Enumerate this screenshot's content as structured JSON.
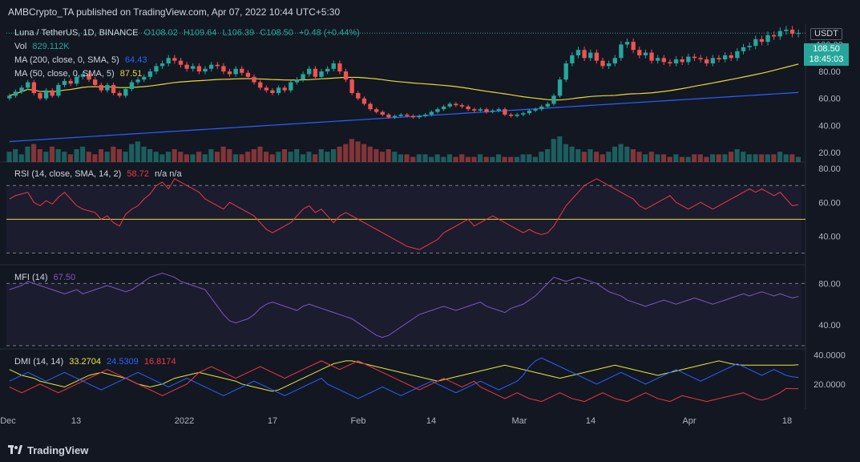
{
  "header": {
    "text": "AMBCrypto_TA published on TradingView.com, Apr 07, 2022 10:44 UTC+5:30"
  },
  "legend": {
    "symbol": "Luna / TetherUS, 1D, BINANCE",
    "open": "O108.02",
    "high": "H109.64",
    "low": "L106.39",
    "close": "C108.50",
    "change": "+0.48 (+0.44%)",
    "vol_label": "Vol",
    "vol_value": "829.112K",
    "ma200_label": "MA (200, close, 0, SMA, 5)",
    "ma200_value": "64.43",
    "ma50_label": "MA (50, close, 0, SMA, 5)",
    "ma50_value": "87.51",
    "rsi_label": "RSI (14, close, SMA, 14, 2)",
    "rsi_value": "58.72",
    "rsi_extra": "n/a n/a",
    "mfi_label": "MFI (14)",
    "mfi_value": "67.50",
    "dmi_label": "DMI (14, 14)",
    "dmi_adx": "33.2704",
    "dmi_plus": "24.5309",
    "dmi_minus": "16.8174"
  },
  "price_axis": {
    "currency": "USDT",
    "last_price": "108.50",
    "countdown": "18:45:03"
  },
  "footer": {
    "brand": "TradingView"
  },
  "colors": {
    "background": "#131722",
    "up": "#26a69a",
    "down": "#ef5350",
    "ma50": "#e6d93a",
    "ma200": "#2962ff",
    "rsi": "#f23645",
    "mfi": "#7e57c2",
    "adx": "#e6e63a",
    "di_plus": "#2962ff",
    "di_minus": "#f23645"
  },
  "chart_data": [
    {
      "type": "candlestick",
      "title": "Luna / TetherUS, 1D, BINANCE",
      "x_ticks": [
        "Dec",
        "13",
        "2022",
        "17",
        "Feb",
        "14",
        "Mar",
        "14",
        "Apr",
        "18"
      ],
      "y_ticks": [
        20.0,
        40.0,
        60.0,
        80.0,
        100.0
      ],
      "ylim": [
        14,
        114
      ],
      "closes": [
        62,
        65,
        68,
        72,
        64,
        60,
        66,
        62,
        70,
        73,
        71,
        76,
        78,
        74,
        70,
        66,
        70,
        64,
        62,
        67,
        72,
        74,
        76,
        80,
        84,
        86,
        90,
        88,
        85,
        82,
        84,
        80,
        82,
        85,
        84,
        80,
        78,
        82,
        79,
        76,
        72,
        68,
        66,
        64,
        68,
        66,
        72,
        74,
        78,
        82,
        76,
        80,
        82,
        86,
        80,
        74,
        64,
        60,
        56,
        52,
        50,
        48,
        46,
        47,
        48,
        47,
        46,
        47,
        48,
        50,
        52,
        54,
        56,
        55,
        54,
        52,
        51,
        52,
        50,
        51,
        52,
        48,
        47,
        48,
        49,
        51,
        52,
        54,
        56,
        62,
        74,
        86,
        92,
        96,
        90,
        94,
        88,
        84,
        86,
        90,
        100,
        102,
        96,
        92,
        94,
        88,
        90,
        87,
        86,
        89,
        87,
        91,
        90,
        89,
        86,
        90,
        89,
        92,
        90,
        95,
        98,
        99,
        104,
        102,
        107,
        106,
        110,
        111,
        108,
        108.5
      ],
      "volume_relative": [
        0.4,
        0.5,
        0.3,
        0.6,
        0.7,
        0.5,
        0.4,
        0.6,
        0.5,
        0.4,
        0.3,
        0.5,
        0.6,
        0.4,
        0.3,
        0.5,
        0.4,
        0.6,
        0.5,
        0.4,
        0.7,
        0.8,
        0.6,
        0.5,
        0.4,
        0.3,
        0.4,
        0.5,
        0.4,
        0.3,
        0.3,
        0.4,
        0.3,
        0.5,
        0.4,
        0.6,
        0.5,
        0.3,
        0.3,
        0.4,
        0.5,
        0.6,
        0.4,
        0.3,
        0.4,
        0.5,
        0.4,
        0.5,
        0.3,
        0.4,
        0.3,
        0.5,
        0.4,
        0.5,
        0.6,
        0.7,
        0.9,
        0.8,
        0.7,
        0.6,
        0.5,
        0.4,
        0.5,
        0.4,
        0.3,
        0.3,
        0.2,
        0.3,
        0.3,
        0.2,
        0.3,
        0.2,
        0.3,
        0.2,
        0.3,
        0.2,
        0.2,
        0.3,
        0.2,
        0.2,
        0.3,
        0.2,
        0.2,
        0.2,
        0.3,
        0.3,
        0.2,
        0.4,
        0.5,
        0.9,
        1.0,
        0.7,
        0.6,
        0.5,
        0.4,
        0.5,
        0.4,
        0.3,
        0.4,
        0.6,
        0.7,
        0.6,
        0.5,
        0.4,
        0.3,
        0.4,
        0.3,
        0.3,
        0.2,
        0.3,
        0.2,
        0.2,
        0.3,
        0.3,
        0.2,
        0.3,
        0.3,
        0.3,
        0.4,
        0.5,
        0.4,
        0.3,
        0.3,
        0.3,
        0.3,
        0.3,
        0.4,
        0.3,
        0.3,
        0.2
      ],
      "ma50_value": 87.51,
      "ma200_value": 64.43
    },
    {
      "type": "line",
      "title": "RSI (14, close, SMA, 14, 2)",
      "y_ticks": [
        40.0,
        60.0,
        80.0
      ],
      "bands": [
        70,
        50,
        30
      ],
      "ylim": [
        25,
        82
      ],
      "values": [
        62,
        64,
        65,
        66,
        60,
        58,
        61,
        59,
        63,
        66,
        62,
        58,
        56,
        55,
        54,
        50,
        52,
        48,
        46,
        53,
        56,
        58,
        62,
        65,
        70,
        72,
        68,
        74,
        72,
        70,
        68,
        66,
        62,
        60,
        58,
        56,
        60,
        58,
        56,
        54,
        52,
        48,
        44,
        42,
        44,
        46,
        48,
        52,
        56,
        58,
        54,
        56,
        52,
        48,
        52,
        54,
        52,
        50,
        48,
        46,
        44,
        42,
        40,
        38,
        36,
        34,
        33,
        32,
        34,
        36,
        38,
        42,
        44,
        46,
        48,
        50,
        46,
        48,
        50,
        52,
        50,
        48,
        46,
        44,
        42,
        44,
        42,
        41,
        42,
        46,
        52,
        58,
        62,
        66,
        70,
        72,
        74,
        72,
        70,
        68,
        66,
        64,
        62,
        58,
        56,
        58,
        60,
        62,
        64,
        60,
        58,
        56,
        58,
        60,
        58,
        56,
        58,
        60,
        62,
        64,
        66,
        68,
        66,
        68,
        66,
        64,
        66,
        62,
        58,
        58.72
      ]
    },
    {
      "type": "line",
      "title": "MFI (14)",
      "y_ticks": [
        40.0,
        80.0
      ],
      "bands": [
        80,
        20
      ],
      "ylim": [
        20,
        95
      ],
      "values": [
        74,
        76,
        78,
        82,
        80,
        78,
        76,
        74,
        72,
        70,
        72,
        74,
        70,
        72,
        74,
        76,
        78,
        76,
        74,
        72,
        74,
        78,
        82,
        86,
        88,
        90,
        88,
        86,
        82,
        80,
        78,
        76,
        74,
        66,
        58,
        50,
        44,
        42,
        44,
        46,
        50,
        56,
        60,
        62,
        60,
        58,
        56,
        54,
        58,
        60,
        58,
        56,
        54,
        52,
        50,
        48,
        46,
        42,
        38,
        34,
        30,
        28,
        30,
        34,
        38,
        42,
        46,
        50,
        52,
        54,
        56,
        58,
        56,
        54,
        56,
        58,
        60,
        62,
        58,
        56,
        54,
        52,
        56,
        58,
        60,
        64,
        68,
        74,
        80,
        86,
        84,
        82,
        84,
        86,
        84,
        82,
        80,
        76,
        72,
        70,
        68,
        64,
        62,
        60,
        58,
        60,
        62,
        64,
        62,
        60,
        62,
        64,
        66,
        64,
        62,
        60,
        62,
        64,
        66,
        68,
        70,
        68,
        70,
        72,
        70,
        68,
        70,
        68,
        66,
        67.5
      ]
    },
    {
      "type": "line",
      "title": "DMI (14, 14)",
      "y_ticks": [
        20.0,
        40.0
      ],
      "ylim": [
        5,
        42
      ],
      "series": [
        {
          "name": "ADX",
          "values": [
            30,
            28,
            26,
            25,
            24,
            22,
            21,
            20,
            19,
            18,
            20,
            22,
            24,
            26,
            27,
            28,
            27,
            26,
            25,
            24,
            22,
            20,
            19,
            18,
            19,
            20,
            22,
            24,
            25,
            26,
            27,
            28,
            27,
            26,
            25,
            24,
            23,
            22,
            20,
            19,
            18,
            17,
            16,
            15,
            16,
            18,
            20,
            22,
            24,
            26,
            28,
            30,
            32,
            34,
            35,
            36,
            36,
            35,
            34,
            33,
            32,
            31,
            30,
            29,
            28,
            27,
            26,
            25,
            24,
            23,
            22,
            23,
            24,
            25,
            26,
            27,
            28,
            29,
            30,
            31,
            32,
            33,
            32,
            31,
            30,
            29,
            28,
            27,
            26,
            25,
            24,
            25,
            26,
            27,
            28,
            29,
            30,
            31,
            32,
            33,
            32,
            31,
            30,
            29,
            28,
            27,
            26,
            27,
            28,
            29,
            30,
            31,
            32,
            33,
            34,
            35,
            36,
            35,
            34,
            33.27,
            33,
            33,
            33,
            33,
            33,
            33,
            33,
            33,
            33,
            33.27
          ]
        },
        {
          "name": "+DI",
          "values": [
            22,
            24,
            26,
            28,
            26,
            24,
            22,
            24,
            26,
            28,
            26,
            24,
            22,
            20,
            18,
            16,
            18,
            20,
            22,
            24,
            26,
            28,
            26,
            24,
            22,
            20,
            18,
            20,
            22,
            24,
            22,
            20,
            18,
            16,
            14,
            12,
            14,
            16,
            18,
            20,
            22,
            20,
            18,
            16,
            14,
            12,
            14,
            16,
            18,
            20,
            22,
            24,
            20,
            18,
            16,
            14,
            12,
            10,
            12,
            14,
            16,
            18,
            16,
            14,
            12,
            14,
            16,
            18,
            20,
            22,
            20,
            18,
            16,
            14,
            16,
            18,
            20,
            22,
            20,
            18,
            16,
            18,
            20,
            22,
            26,
            32,
            36,
            38,
            36,
            34,
            32,
            30,
            28,
            26,
            24,
            22,
            20,
            22,
            24,
            26,
            28,
            26,
            24,
            22,
            20,
            22,
            24,
            26,
            28,
            30,
            28,
            26,
            24,
            22,
            24,
            26,
            28,
            30,
            32,
            34,
            32,
            30,
            28,
            26,
            28,
            30,
            28,
            26,
            25,
            24.53
          ]
        },
        {
          "name": "-DI",
          "values": [
            18,
            16,
            14,
            16,
            18,
            20,
            18,
            16,
            14,
            16,
            18,
            20,
            22,
            24,
            26,
            28,
            30,
            28,
            26,
            24,
            22,
            20,
            18,
            16,
            14,
            12,
            14,
            16,
            18,
            20,
            24,
            28,
            30,
            32,
            30,
            28,
            26,
            24,
            26,
            28,
            30,
            32,
            30,
            28,
            26,
            24,
            26,
            28,
            30,
            32,
            34,
            36,
            34,
            32,
            30,
            32,
            34,
            36,
            34,
            32,
            30,
            28,
            26,
            24,
            22,
            20,
            18,
            16,
            18,
            20,
            22,
            24,
            22,
            20,
            18,
            20,
            22,
            18,
            16,
            14,
            12,
            10,
            12,
            14,
            12,
            10,
            9,
            8,
            10,
            12,
            14,
            12,
            10,
            9,
            8,
            10,
            12,
            14,
            12,
            10,
            9,
            8,
            10,
            12,
            14,
            12,
            10,
            9,
            8,
            10,
            12,
            11,
            10,
            9,
            8,
            9,
            10,
            11,
            12,
            13,
            14,
            12,
            10,
            9,
            10,
            12,
            14,
            17,
            16.82,
            16.82
          ]
        }
      ]
    }
  ]
}
